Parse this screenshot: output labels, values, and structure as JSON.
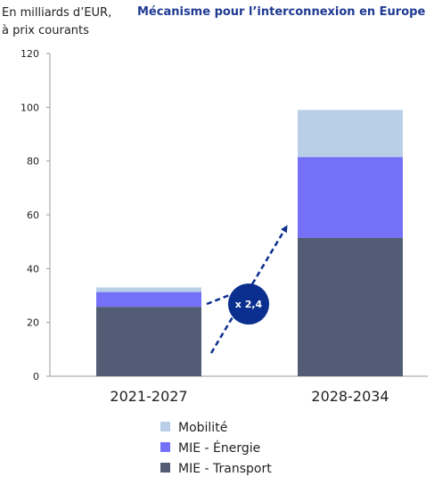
{
  "chart_data": {
    "type": "bar",
    "stacked": true,
    "title": "Mécanisme pour l’interconnexion en Europe",
    "unit_line1": "En milliards d’EUR,",
    "unit_line2": "à prix courants",
    "categories": [
      "2021-2027",
      "2028-2034"
    ],
    "series": [
      {
        "name": "MIE - Transport",
        "values": [
          25.8,
          51.5
        ],
        "color": "#525d75"
      },
      {
        "name": "MIE - Énergie",
        "values": [
          5.5,
          30.0
        ],
        "color": "#7470f8"
      },
      {
        "name": "Mobilité",
        "values": [
          1.7,
          17.5
        ],
        "color": "#b9cfe8"
      }
    ],
    "legend_order": [
      "Mobilité",
      "MIE - Énergie",
      "MIE - Transport"
    ],
    "ylim": [
      0,
      120
    ],
    "yticks": [
      0,
      20,
      40,
      60,
      80,
      100,
      120
    ],
    "grid": false,
    "legend_position": "bottom",
    "annotation": {
      "label": "x 2,4",
      "color": "#0b2f8f"
    }
  }
}
